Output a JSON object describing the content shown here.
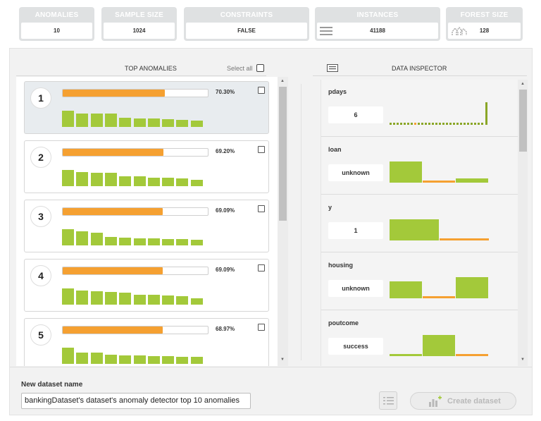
{
  "stats": [
    {
      "label": "ANOMALIES",
      "value": "10"
    },
    {
      "label": "SAMPLE SIZE",
      "value": "1024"
    },
    {
      "label": "CONSTRAINTS",
      "value": "FALSE"
    },
    {
      "label": "INSTANCES",
      "value": "41188"
    },
    {
      "label": "FOREST SIZE",
      "value": "128"
    }
  ],
  "top_anomalies": {
    "title": "TOP ANOMALIES",
    "select_all_label": "Select all",
    "items": [
      {
        "rank": "1",
        "score": 70.3,
        "score_label": "70.30%",
        "bars": [
          0.95,
          0.78,
          0.78,
          0.78,
          0.55,
          0.5,
          0.5,
          0.45,
          0.4,
          0.38
        ]
      },
      {
        "rank": "2",
        "score": 69.2,
        "score_label": "69.20%",
        "bars": [
          0.95,
          0.85,
          0.78,
          0.78,
          0.58,
          0.58,
          0.52,
          0.5,
          0.45,
          0.38
        ]
      },
      {
        "rank": "3",
        "score": 69.09,
        "score_label": "69.09%",
        "bars": [
          0.95,
          0.82,
          0.75,
          0.48,
          0.45,
          0.42,
          0.4,
          0.38,
          0.36,
          0.34
        ]
      },
      {
        "rank": "4",
        "score": 69.09,
        "score_label": "69.09%",
        "bars": [
          0.95,
          0.82,
          0.78,
          0.75,
          0.7,
          0.58,
          0.58,
          0.55,
          0.5,
          0.38
        ]
      },
      {
        "rank": "5",
        "score": 68.97,
        "score_label": "68.97%",
        "bars": [
          0.95,
          0.68,
          0.68,
          0.55,
          0.5,
          0.5,
          0.45,
          0.45,
          0.42,
          0.4
        ]
      }
    ]
  },
  "data_inspector": {
    "title": "DATA INSPECTOR",
    "fields": [
      {
        "name": "pdays",
        "value": "6"
      },
      {
        "name": "loan",
        "value": "unknown"
      },
      {
        "name": "y",
        "value": "1"
      },
      {
        "name": "housing",
        "value": "unknown"
      },
      {
        "name": "poutcome",
        "value": "success"
      }
    ]
  },
  "footer": {
    "dataset_name_label": "New dataset name",
    "dataset_name_value": "bankingDataset's dataset's anomaly detector top 10 anomalies",
    "create_button_label": "Create dataset"
  },
  "colors": {
    "score_bar": "#f5a031",
    "histogram_green": "#a3c93a",
    "histogram_orange": "#f5a031",
    "header_card": "#dfe1e2"
  }
}
